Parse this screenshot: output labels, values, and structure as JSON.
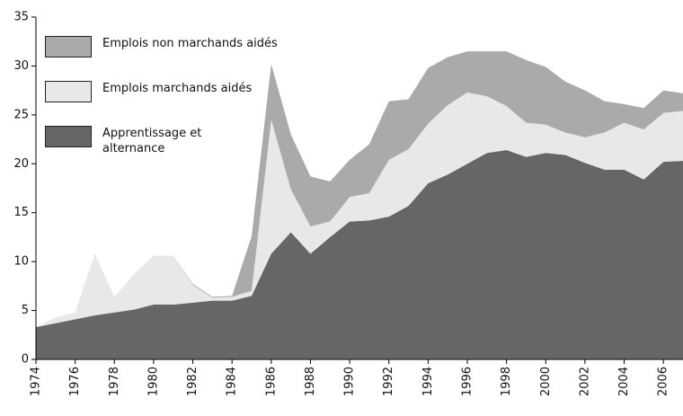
{
  "chart_data": {
    "type": "area",
    "x": [
      1974,
      1975,
      1976,
      1977,
      1978,
      1979,
      1980,
      1981,
      1982,
      1983,
      1984,
      1985,
      1986,
      1987,
      1988,
      1989,
      1990,
      1991,
      1992,
      1993,
      1994,
      1995,
      1996,
      1997,
      1998,
      1999,
      2000,
      2001,
      2002,
      2003,
      2004,
      2005,
      2006,
      2007
    ],
    "series": [
      {
        "name": "Apprentissage et alternance",
        "color": "#666666",
        "values": [
          3.3,
          3.7,
          4.1,
          4.5,
          4.8,
          5.1,
          5.6,
          5.6,
          5.8,
          6.0,
          6.0,
          6.5,
          10.8,
          13.0,
          10.8,
          12.5,
          14.1,
          14.2,
          14.6,
          15.7,
          18.0,
          18.9,
          20.0,
          21.1,
          21.4,
          20.7,
          21.1,
          20.9,
          20.1,
          19.4,
          19.4,
          18.4,
          20.2,
          20.3
        ]
      },
      {
        "name": "Emplois marchands aidés",
        "color": "#e8e8e8",
        "values": [
          0,
          0.6,
          0.7,
          6.3,
          1.6,
          3.6,
          5.0,
          5.0,
          1.8,
          0.3,
          0.4,
          0.5,
          13.7,
          4.4,
          2.8,
          1.6,
          2.5,
          2.8,
          5.8,
          5.8,
          6.1,
          7.1,
          7.3,
          5.8,
          4.5,
          3.5,
          2.9,
          2.3,
          2.6,
          3.8,
          4.8,
          5.1,
          5.0,
          5.1
        ]
      },
      {
        "name": "Emplois non marchands aidés",
        "color": "#aaaaaa",
        "values": [
          0,
          0,
          0,
          0,
          0,
          0,
          0,
          0,
          0.1,
          0.1,
          0.1,
          5.6,
          5.7,
          5.6,
          5.1,
          4.1,
          3.8,
          5.0,
          6.0,
          5.1,
          5.7,
          4.9,
          4.2,
          4.6,
          5.6,
          6.4,
          5.9,
          5.2,
          4.8,
          3.2,
          1.9,
          2.2,
          2.3,
          1.8
        ]
      }
    ],
    "xlim": [
      1974,
      2007
    ],
    "xticks": [
      1974,
      1976,
      1978,
      1980,
      1982,
      1984,
      1986,
      1988,
      1990,
      1992,
      1994,
      1996,
      1998,
      2000,
      2002,
      2004,
      2006
    ],
    "ylim": [
      0,
      35
    ],
    "yticks": [
      0,
      5,
      10,
      15,
      20,
      25,
      30,
      35
    ],
    "stacked": true
  }
}
